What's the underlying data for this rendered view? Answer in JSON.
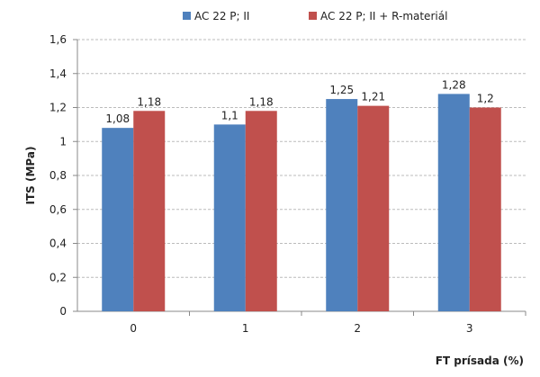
{
  "chart_data": {
    "type": "bar",
    "title": "",
    "categories": [
      "0",
      "1",
      "2",
      "3"
    ],
    "series": [
      {
        "name": "AC 22 P; II",
        "color": "#4F81BD",
        "values": [
          1.08,
          1.1,
          1.25,
          1.28
        ],
        "labels": [
          "1,08",
          "1,1",
          "1,25",
          "1,28"
        ]
      },
      {
        "name": "AC 22 P; II + R-materiál",
        "color": "#C0504D",
        "values": [
          1.18,
          1.18,
          1.21,
          1.2
        ],
        "labels": [
          "1,18",
          "1,18",
          "1,21",
          "1,2"
        ]
      }
    ],
    "xlabel": "FT prísada (%)",
    "ylabel": "ITS (MPa)",
    "ylim": [
      0,
      1.6
    ],
    "yticks": [
      0,
      0.2,
      0.4,
      0.6,
      0.8,
      1,
      1.2,
      1.4,
      1.6
    ],
    "ytick_labels": [
      "0",
      "0,2",
      "0,4",
      "0,6",
      "0,8",
      "1",
      "1,2",
      "1,4",
      "1,6"
    ],
    "grid": true,
    "legend_position": "top"
  }
}
